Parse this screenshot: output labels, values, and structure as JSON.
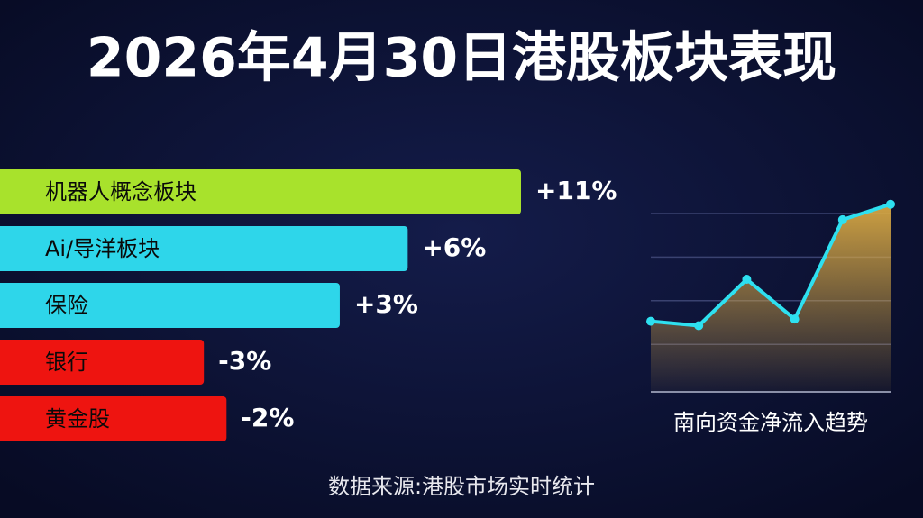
{
  "title": "2026年4月30日港股板块表现",
  "source": "数据来源:港股市场实时统计",
  "chart_data": [
    {
      "type": "bar",
      "orientation": "horizontal",
      "categories": [
        "机器人概念板块",
        "Ai/导洋板块",
        "保险",
        "银行",
        "黄金股"
      ],
      "values": [
        11,
        6,
        3,
        -3,
        -2
      ],
      "value_labels": [
        "+11%",
        "+6%",
        "+3%",
        "-3%",
        "-2%"
      ],
      "colors": [
        "#a8e22c",
        "#2ed6ea",
        "#2ed6ea",
        "#ee1410",
        "#ee1410"
      ],
      "xlim": [
        -12,
        11
      ]
    },
    {
      "type": "line",
      "title": "南向资金净流入趋势",
      "values": [
        3.2,
        3.0,
        5.1,
        3.3,
        7.8,
        8.5
      ],
      "color": "#2ee0f0",
      "area_color": "#d8a843",
      "ylim": [
        0,
        10
      ],
      "grid": true
    }
  ]
}
